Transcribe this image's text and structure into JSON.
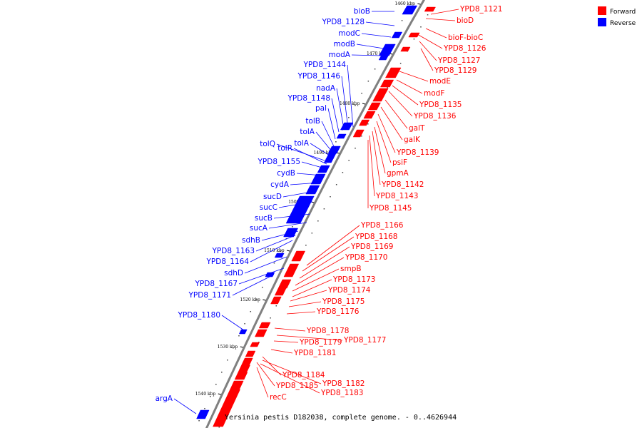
{
  "legend": [
    {
      "label": "Forward",
      "color": "#ff0000"
    },
    {
      "label": "Reverse",
      "color": "#0000ff"
    }
  ],
  "caption": "Yersinia pestis D182038, complete genome. - 0..4626944",
  "colors": {
    "forward": "#ff0000",
    "reverse": "#0000ff",
    "backbone": "#808080"
  },
  "ticks": [
    "1460 kbp",
    "1470 kbp",
    "1480 kbp",
    "1490 kbp",
    "1500 kbp",
    "1510 kbp",
    "1520 kbp",
    "1530 kbp",
    "1540 kbp"
  ],
  "reverse_labels": [
    "bioB",
    "YPD8_1128",
    "modC",
    "modB",
    "modA",
    "YPD8_1144",
    "YPD8_1146",
    "nadA",
    "YPD8_1148",
    "pal",
    "tolB",
    "tolA",
    "tolA",
    "tolQ",
    "tolR",
    "YPD8_1155",
    "cydB",
    "cydA",
    "sucD",
    "sucC",
    "sucB",
    "sucA",
    "sdhB",
    "YPD8_1163",
    "YPD8_1164",
    "sdhD",
    "YPD8_1167",
    "YPD8_1171",
    "YPD8_1180",
    "argA"
  ],
  "forward_labels": [
    "YPD8_1121",
    "bioD",
    "bioF-bioC",
    "YPD8_1126",
    "YPD8_1127",
    "YPD8_1129",
    "modE",
    "modF",
    "YPD8_1135",
    "YPD8_1136",
    "galT",
    "galK",
    "YPD8_1139",
    "psiF",
    "gpmA",
    "YPD8_1142",
    "YPD8_1143",
    "YPD8_1145",
    "YPD8_1166",
    "YPD8_1168",
    "YPD8_1169",
    "YPD8_1170",
    "smpB",
    "YPD8_1173",
    "YPD8_1174",
    "YPD8_1175",
    "YPD8_1176",
    "YPD8_1178",
    "YPD8_1177",
    "YPD8_1179",
    "YPD8_1181",
    "YPD8_1184",
    "YPD8_1182",
    "YPD8_1185",
    "YPD8_1183",
    "recC"
  ]
}
